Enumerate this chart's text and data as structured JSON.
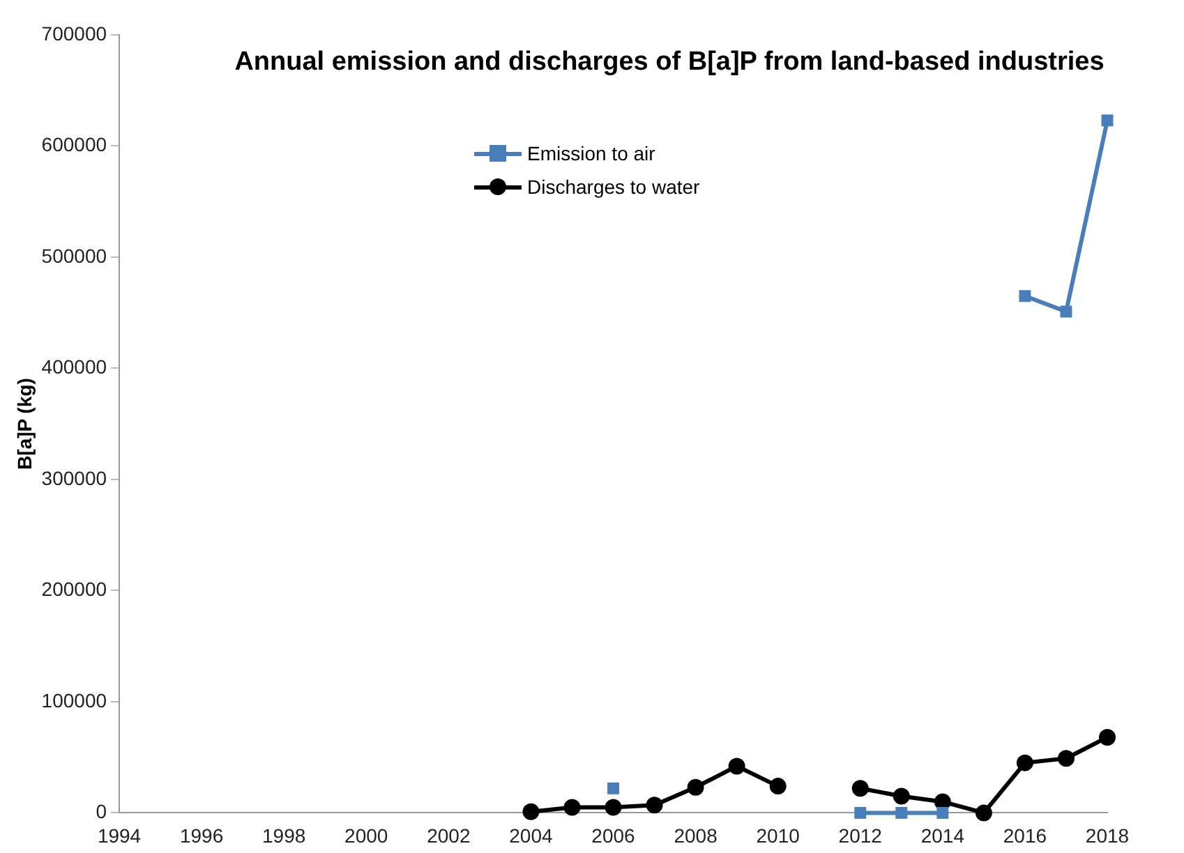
{
  "chart_data": {
    "type": "line",
    "title": "Annual emission and discharges of B[a]P from land-based industries",
    "ylabel": "B[a]P (kg)",
    "x": [
      2004,
      2005,
      2006,
      2007,
      2008,
      2009,
      2010,
      2011,
      2012,
      2013,
      2014,
      2015,
      2016,
      2017,
      2018
    ],
    "series": [
      {
        "name": "Emission to air",
        "color": "#4a7ebb",
        "marker": "square",
        "values": [
          null,
          null,
          22000,
          null,
          null,
          null,
          null,
          null,
          0,
          0,
          0,
          null,
          465000,
          451000,
          623000
        ]
      },
      {
        "name": "Discharges to water",
        "color": "#000000",
        "marker": "circle",
        "values": [
          1000,
          5000,
          5000,
          7000,
          23000,
          42000,
          24000,
          null,
          22000,
          15000,
          10000,
          0,
          45000,
          49000,
          68000
        ]
      }
    ],
    "xlim": [
      1994,
      2018
    ],
    "xticks": [
      1994,
      1996,
      1998,
      2000,
      2002,
      2004,
      2006,
      2008,
      2010,
      2012,
      2014,
      2016,
      2018
    ],
    "ylim": [
      0,
      700000
    ],
    "yticks": [
      0,
      100000,
      200000,
      300000,
      400000,
      500000,
      600000,
      700000
    ],
    "grid": false,
    "legend": "top",
    "line_style": "solid"
  }
}
